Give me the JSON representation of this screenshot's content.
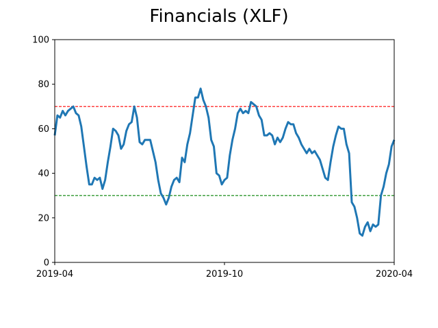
{
  "chart_data": {
    "type": "line",
    "title": "Financials (XLF)",
    "xlim": [
      "2019-04",
      "2020-04"
    ],
    "xticks": [
      "2019-04",
      "2019-10",
      "2020-04"
    ],
    "ylim": [
      0,
      100
    ],
    "yticks": [
      0,
      20,
      40,
      60,
      80,
      100
    ],
    "color": "#1f77b4",
    "hlines": [
      {
        "value": 70,
        "color": "#ff0000"
      },
      {
        "value": 30,
        "color": "#008000"
      }
    ],
    "values": [
      57,
      66,
      65,
      68,
      66,
      68,
      69,
      70,
      67,
      66,
      61,
      52,
      43,
      35,
      35,
      38,
      37,
      38,
      33,
      37,
      45,
      52,
      60,
      59,
      57,
      51,
      53,
      59,
      62,
      63,
      70,
      65,
      54,
      53,
      55,
      55,
      55,
      50,
      45,
      37,
      31,
      29,
      26,
      29,
      34,
      37,
      38,
      36,
      47,
      45,
      53,
      58,
      66,
      74,
      74,
      78,
      73,
      70,
      65,
      55,
      52,
      40,
      39,
      35,
      37,
      38,
      48,
      55,
      60,
      67,
      69,
      67,
      68,
      67,
      72,
      71,
      70,
      66,
      64,
      57,
      57,
      58,
      57,
      53,
      56,
      54,
      56,
      60,
      63,
      62,
      62,
      58,
      56,
      53,
      51,
      49,
      51,
      49,
      50,
      48,
      46,
      42,
      38,
      37,
      45,
      52,
      57,
      61,
      60,
      60,
      53,
      49,
      27,
      25,
      20,
      13,
      12,
      16,
      18,
      14,
      17,
      16,
      17,
      30,
      34,
      40,
      44,
      52,
      55
    ]
  }
}
